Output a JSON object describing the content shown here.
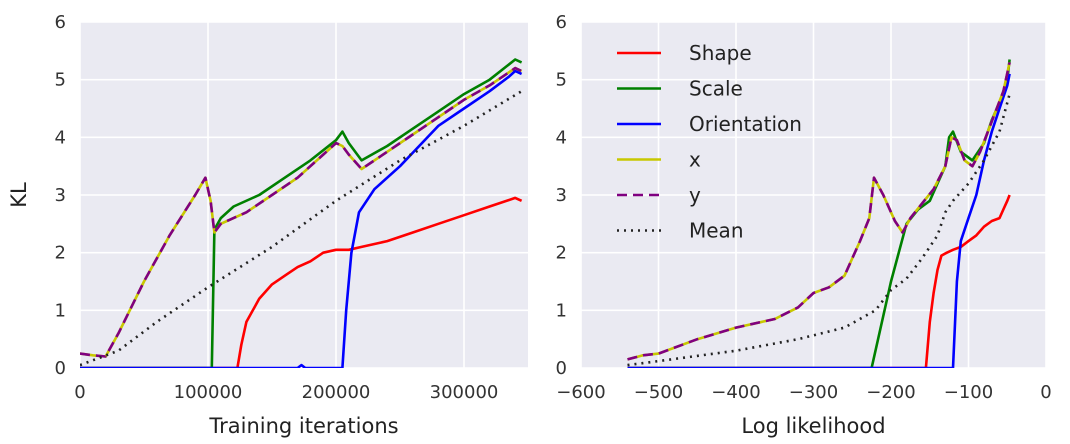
{
  "chart_data": [
    {
      "type": "line",
      "xlabel": "Training iterations",
      "ylabel": "KL",
      "xlim": [
        0,
        350000
      ],
      "ylim": [
        0,
        6
      ],
      "x_ticks": [
        "0",
        "100000",
        "200000",
        "300000"
      ],
      "y_ticks": [
        "0",
        "1",
        "2",
        "3",
        "4",
        "5",
        "6"
      ],
      "grid": true,
      "series": [
        {
          "name": "Shape",
          "color": "#ff0000",
          "dash": "solid",
          "points": [
            [
              0,
              0
            ],
            [
              123000,
              0
            ],
            [
              126000,
              0.4
            ],
            [
              130000,
              0.8
            ],
            [
              140000,
              1.2
            ],
            [
              150000,
              1.45
            ],
            [
              160000,
              1.6
            ],
            [
              170000,
              1.75
            ],
            [
              180000,
              1.85
            ],
            [
              190000,
              2.0
            ],
            [
              200000,
              2.05
            ],
            [
              210000,
              2.05
            ],
            [
              220000,
              2.1
            ],
            [
              240000,
              2.2
            ],
            [
              260000,
              2.35
            ],
            [
              280000,
              2.5
            ],
            [
              300000,
              2.65
            ],
            [
              320000,
              2.8
            ],
            [
              340000,
              2.95
            ],
            [
              345000,
              2.9
            ]
          ]
        },
        {
          "name": "Scale",
          "color": "#008000",
          "dash": "solid",
          "points": [
            [
              0,
              0
            ],
            [
              100000,
              0
            ],
            [
              103000,
              0
            ],
            [
              105000,
              2.4
            ],
            [
              110000,
              2.6
            ],
            [
              120000,
              2.8
            ],
            [
              140000,
              3.0
            ],
            [
              160000,
              3.3
            ],
            [
              180000,
              3.6
            ],
            [
              200000,
              3.95
            ],
            [
              205000,
              4.1
            ],
            [
              210000,
              3.9
            ],
            [
              220000,
              3.6
            ],
            [
              240000,
              3.85
            ],
            [
              260000,
              4.15
            ],
            [
              280000,
              4.45
            ],
            [
              300000,
              4.75
            ],
            [
              320000,
              5.0
            ],
            [
              340000,
              5.35
            ],
            [
              345000,
              5.3
            ]
          ]
        },
        {
          "name": "Orientation",
          "color": "#0000ff",
          "dash": "solid",
          "points": [
            [
              0,
              0
            ],
            [
              170000,
              0
            ],
            [
              173000,
              0.05
            ],
            [
              176000,
              0
            ],
            [
              205000,
              0
            ],
            [
              208000,
              1.0
            ],
            [
              212000,
              2.0
            ],
            [
              218000,
              2.7
            ],
            [
              230000,
              3.1
            ],
            [
              250000,
              3.5
            ],
            [
              265000,
              3.85
            ],
            [
              280000,
              4.2
            ],
            [
              300000,
              4.5
            ],
            [
              320000,
              4.8
            ],
            [
              335000,
              5.05
            ],
            [
              340000,
              5.15
            ],
            [
              345000,
              5.1
            ]
          ]
        },
        {
          "name": "x",
          "color": "#c8c800",
          "dash": "solid",
          "points": [
            [
              0,
              0.25
            ],
            [
              10000,
              0.22
            ],
            [
              20000,
              0.2
            ],
            [
              30000,
              0.6
            ],
            [
              50000,
              1.5
            ],
            [
              70000,
              2.3
            ],
            [
              90000,
              3.0
            ],
            [
              98000,
              3.3
            ],
            [
              102000,
              2.9
            ],
            [
              105000,
              2.35
            ],
            [
              110000,
              2.5
            ],
            [
              130000,
              2.7
            ],
            [
              150000,
              3.0
            ],
            [
              170000,
              3.3
            ],
            [
              190000,
              3.7
            ],
            [
              200000,
              3.9
            ],
            [
              205000,
              3.85
            ],
            [
              210000,
              3.7
            ],
            [
              220000,
              3.45
            ],
            [
              240000,
              3.75
            ],
            [
              260000,
              4.05
            ],
            [
              280000,
              4.35
            ],
            [
              300000,
              4.65
            ],
            [
              320000,
              4.9
            ],
            [
              340000,
              5.2
            ],
            [
              345000,
              5.15
            ]
          ]
        },
        {
          "name": "y",
          "color": "#800080",
          "dash": "dashed",
          "points": [
            [
              0,
              0.25
            ],
            [
              10000,
              0.22
            ],
            [
              20000,
              0.2
            ],
            [
              30000,
              0.6
            ],
            [
              50000,
              1.5
            ],
            [
              70000,
              2.3
            ],
            [
              90000,
              3.0
            ],
            [
              98000,
              3.3
            ],
            [
              102000,
              2.9
            ],
            [
              105000,
              2.35
            ],
            [
              110000,
              2.5
            ],
            [
              130000,
              2.7
            ],
            [
              150000,
              3.0
            ],
            [
              170000,
              3.3
            ],
            [
              190000,
              3.7
            ],
            [
              200000,
              3.9
            ],
            [
              205000,
              3.85
            ],
            [
              210000,
              3.7
            ],
            [
              220000,
              3.45
            ],
            [
              240000,
              3.75
            ],
            [
              260000,
              4.05
            ],
            [
              280000,
              4.35
            ],
            [
              300000,
              4.65
            ],
            [
              320000,
              4.9
            ],
            [
              340000,
              5.2
            ],
            [
              345000,
              5.15
            ]
          ]
        },
        {
          "name": "Mean",
          "color": "#222222",
          "dash": "dotted",
          "points": [
            [
              0,
              0.05
            ],
            [
              30000,
              0.3
            ],
            [
              60000,
              0.8
            ],
            [
              100000,
              1.4
            ],
            [
              150000,
              2.1
            ],
            [
              200000,
              2.9
            ],
            [
              250000,
              3.6
            ],
            [
              300000,
              4.2
            ],
            [
              330000,
              4.6
            ],
            [
              345000,
              4.8
            ]
          ]
        }
      ]
    },
    {
      "type": "line",
      "xlabel": "Log likelihood",
      "ylabel": "",
      "xlim": [
        -600,
        0
      ],
      "ylim": [
        0,
        6
      ],
      "x_ticks": [
        "−600",
        "−500",
        "−400",
        "−300",
        "−200",
        "−100",
        "0"
      ],
      "y_ticks": [
        "0",
        "1",
        "2",
        "3",
        "4",
        "5",
        "6"
      ],
      "grid": true,
      "legend": "top-left",
      "series": [
        {
          "name": "Shape",
          "color": "#ff0000",
          "dash": "solid",
          "points": [
            [
              -540,
              0
            ],
            [
              -155,
              0
            ],
            [
              -150,
              0.8
            ],
            [
              -145,
              1.3
            ],
            [
              -140,
              1.7
            ],
            [
              -135,
              1.95
            ],
            [
              -128,
              2.0
            ],
            [
              -120,
              2.05
            ],
            [
              -110,
              2.1
            ],
            [
              -100,
              2.2
            ],
            [
              -90,
              2.3
            ],
            [
              -80,
              2.45
            ],
            [
              -70,
              2.55
            ],
            [
              -60,
              2.6
            ],
            [
              -55,
              2.75
            ],
            [
              -50,
              2.9
            ],
            [
              -47,
              3.0
            ]
          ]
        },
        {
          "name": "Scale",
          "color": "#008000",
          "dash": "solid",
          "points": [
            [
              -540,
              0
            ],
            [
              -225,
              0
            ],
            [
              -200,
              1.5
            ],
            [
              -180,
              2.5
            ],
            [
              -165,
              2.75
            ],
            [
              -150,
              2.9
            ],
            [
              -140,
              3.2
            ],
            [
              -130,
              3.5
            ],
            [
              -125,
              4.0
            ],
            [
              -120,
              4.1
            ],
            [
              -110,
              3.75
            ],
            [
              -95,
              3.6
            ],
            [
              -80,
              3.9
            ],
            [
              -70,
              4.3
            ],
            [
              -60,
              4.6
            ],
            [
              -50,
              5.0
            ],
            [
              -47,
              5.35
            ]
          ]
        },
        {
          "name": "Orientation",
          "color": "#0000ff",
          "dash": "solid",
          "points": [
            [
              -540,
              0
            ],
            [
              -120,
              0
            ],
            [
              -115,
              1.5
            ],
            [
              -110,
              2.2
            ],
            [
              -100,
              2.6
            ],
            [
              -90,
              3.0
            ],
            [
              -80,
              3.6
            ],
            [
              -70,
              4.1
            ],
            [
              -60,
              4.5
            ],
            [
              -50,
              4.9
            ],
            [
              -47,
              5.1
            ]
          ]
        },
        {
          "name": "x",
          "color": "#c8c800",
          "dash": "solid",
          "points": [
            [
              -540,
              0.15
            ],
            [
              -520,
              0.22
            ],
            [
              -500,
              0.25
            ],
            [
              -450,
              0.5
            ],
            [
              -400,
              0.7
            ],
            [
              -350,
              0.85
            ],
            [
              -320,
              1.05
            ],
            [
              -300,
              1.3
            ],
            [
              -280,
              1.4
            ],
            [
              -260,
              1.6
            ],
            [
              -240,
              2.2
            ],
            [
              -228,
              2.6
            ],
            [
              -222,
              3.3
            ],
            [
              -210,
              3.0
            ],
            [
              -195,
              2.55
            ],
            [
              -185,
              2.35
            ],
            [
              -175,
              2.6
            ],
            [
              -160,
              2.85
            ],
            [
              -145,
              3.1
            ],
            [
              -130,
              3.5
            ],
            [
              -122,
              4.0
            ],
            [
              -115,
              3.95
            ],
            [
              -105,
              3.6
            ],
            [
              -95,
              3.5
            ],
            [
              -85,
              3.75
            ],
            [
              -75,
              4.1
            ],
            [
              -65,
              4.45
            ],
            [
              -55,
              4.8
            ],
            [
              -47,
              5.3
            ]
          ]
        },
        {
          "name": "y",
          "color": "#800080",
          "dash": "dashed",
          "points": [
            [
              -540,
              0.15
            ],
            [
              -520,
              0.22
            ],
            [
              -500,
              0.25
            ],
            [
              -450,
              0.5
            ],
            [
              -400,
              0.7
            ],
            [
              -350,
              0.85
            ],
            [
              -320,
              1.05
            ],
            [
              -300,
              1.3
            ],
            [
              -280,
              1.4
            ],
            [
              -260,
              1.6
            ],
            [
              -240,
              2.2
            ],
            [
              -228,
              2.6
            ],
            [
              -222,
              3.3
            ],
            [
              -210,
              3.0
            ],
            [
              -195,
              2.55
            ],
            [
              -185,
              2.35
            ],
            [
              -175,
              2.6
            ],
            [
              -160,
              2.85
            ],
            [
              -145,
              3.1
            ],
            [
              -130,
              3.5
            ],
            [
              -122,
              4.0
            ],
            [
              -115,
              3.95
            ],
            [
              -105,
              3.6
            ],
            [
              -95,
              3.5
            ],
            [
              -85,
              3.75
            ],
            [
              -75,
              4.1
            ],
            [
              -65,
              4.45
            ],
            [
              -55,
              4.8
            ],
            [
              -47,
              5.3
            ]
          ]
        },
        {
          "name": "Mean",
          "color": "#222222",
          "dash": "dotted",
          "points": [
            [
              -540,
              0.05
            ],
            [
              -500,
              0.12
            ],
            [
              -400,
              0.3
            ],
            [
              -320,
              0.5
            ],
            [
              -260,
              0.7
            ],
            [
              -220,
              1.0
            ],
            [
              -200,
              1.35
            ],
            [
              -180,
              1.55
            ],
            [
              -160,
              1.9
            ],
            [
              -140,
              2.3
            ],
            [
              -130,
              2.7
            ],
            [
              -120,
              2.9
            ],
            [
              -100,
              3.2
            ],
            [
              -80,
              3.6
            ],
            [
              -60,
              4.1
            ],
            [
              -47,
              4.75
            ]
          ]
        }
      ]
    }
  ]
}
